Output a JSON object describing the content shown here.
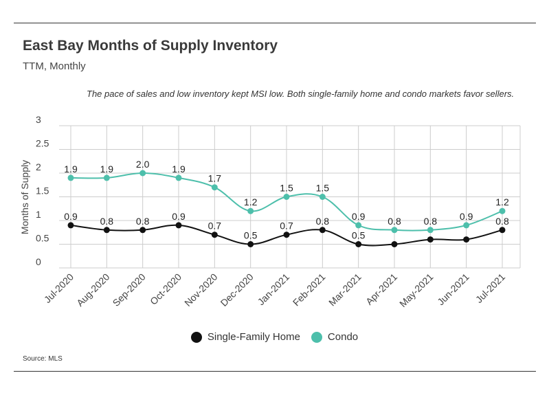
{
  "title": "East Bay Months of Supply Inventory",
  "subtitle": "TTM, Monthly",
  "note": "The pace of sales and low inventory kept MSI low. Both single-family home and condo markets favor sellers.",
  "source": "Source:  MLS",
  "colors": {
    "single_family": "#111111",
    "condo": "#4dbfab",
    "grid": "#cccccc"
  },
  "chart_data": {
    "type": "line",
    "title": "East Bay Months of Supply Inventory",
    "subtitle": "TTM, Monthly",
    "xlabel": "",
    "ylabel": "Months of Supply",
    "ylim": [
      0,
      3
    ],
    "yticks": [
      "0",
      "0.5",
      "1",
      "1.5",
      "2",
      "2.5",
      "3"
    ],
    "grid": true,
    "legend": "bottom",
    "categories": [
      "Jul-2020",
      "Aug-2020",
      "Sep-2020",
      "Oct-2020",
      "Nov-2020",
      "Dec-2020",
      "Jan-2021",
      "Feb-2021",
      "Mar-2021",
      "Apr-2021",
      "May-2021",
      "Jun-2021",
      "Jul-2021"
    ],
    "series": [
      {
        "name": "Single-Family Home",
        "values": [
          0.9,
          0.8,
          0.8,
          0.9,
          0.7,
          0.5,
          0.7,
          0.8,
          0.5,
          0.5,
          0.6,
          0.6,
          0.8
        ],
        "labels": [
          "0.9",
          "0.8",
          "0.8",
          "0.9",
          "0.7",
          "0.5",
          "0.7",
          "0.8",
          "0.5",
          "",
          "",
          "",
          "0.8"
        ]
      },
      {
        "name": "Condo",
        "values": [
          1.9,
          1.9,
          2.0,
          1.9,
          1.7,
          1.2,
          1.5,
          1.5,
          0.9,
          0.8,
          0.8,
          0.9,
          1.2
        ],
        "labels": [
          "1.9",
          "1.9",
          "2.0",
          "1.9",
          "1.7",
          "1.2",
          "1.5",
          "1.5",
          "0.9",
          "0.8",
          "0.8",
          "0.9",
          "1.2"
        ]
      }
    ]
  }
}
